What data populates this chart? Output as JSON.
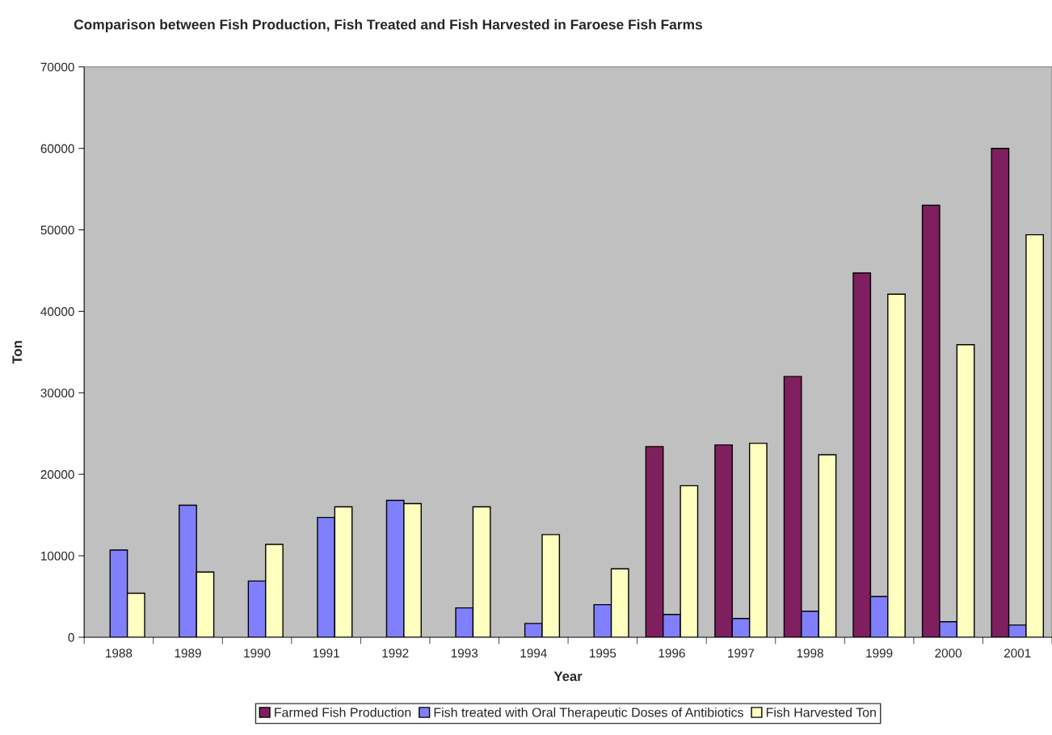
{
  "chart_data": {
    "type": "bar",
    "title": "Comparison between Fish Production, Fish Treated and Fish Harvested in Faroese Fish Farms",
    "xlabel": "Year",
    "ylabel": "Ton",
    "categories": [
      "1988",
      "1989",
      "1990",
      "1991",
      "1992",
      "1993",
      "1994",
      "1995",
      "1996",
      "1997",
      "1998",
      "1999",
      "2000",
      "2001"
    ],
    "series": [
      {
        "name": "Farmed Fish Production",
        "color": "#7f1f5f",
        "values": [
          null,
          null,
          null,
          null,
          null,
          null,
          null,
          null,
          23400,
          23600,
          32000,
          44700,
          53000,
          60000
        ]
      },
      {
        "name": "Fish treated with Oral Therapeutic Doses of Antibiotics",
        "color": "#8080ff",
        "values": [
          10700,
          16200,
          6900,
          14700,
          16800,
          3600,
          1700,
          4000,
          2800,
          2300,
          3200,
          5000,
          1900,
          1500
        ]
      },
      {
        "name": "Fish Harvested Ton",
        "color": "#ffffc0",
        "values": [
          5400,
          8000,
          11400,
          16000,
          16400,
          16000,
          12600,
          8400,
          18600,
          23800,
          22400,
          42100,
          35900,
          49400
        ]
      }
    ],
    "ylim": [
      0,
      70000
    ],
    "yticks": [
      0,
      10000,
      20000,
      30000,
      40000,
      50000,
      60000,
      70000
    ],
    "grid": false,
    "legend": "bottom"
  }
}
